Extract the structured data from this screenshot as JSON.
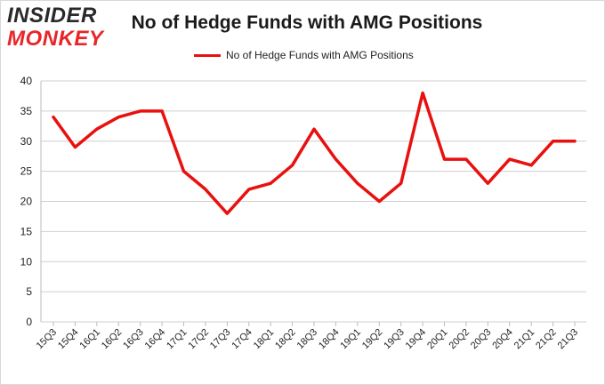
{
  "logo": {
    "line1": "INSIDER",
    "line2": "MONKEY"
  },
  "chart_data": {
    "type": "line",
    "title": "No of Hedge Funds with AMG Positions",
    "xlabel": "",
    "ylabel": "",
    "ylim": [
      0,
      40
    ],
    "yticks": [
      0,
      5,
      10,
      15,
      20,
      25,
      30,
      35,
      40
    ],
    "grid": "horizontal",
    "legend_position": "top",
    "line_color": "#e8110f",
    "categories": [
      "15Q3",
      "15Q4",
      "16Q1",
      "16Q2",
      "16Q3",
      "16Q4",
      "17Q1",
      "17Q2",
      "17Q3",
      "17Q4",
      "18Q1",
      "18Q2",
      "18Q3",
      "18Q4",
      "19Q1",
      "19Q2",
      "19Q3",
      "19Q4",
      "20Q1",
      "20Q2",
      "20Q3",
      "20Q4",
      "21Q1",
      "21Q2",
      "21Q3"
    ],
    "series": [
      {
        "name": "No of Hedge Funds with AMG Positions",
        "values": [
          34,
          29,
          32,
          34,
          35,
          35,
          25,
          22,
          18,
          22,
          23,
          26,
          32,
          27,
          23,
          20,
          23,
          38,
          27,
          27,
          23,
          27,
          26,
          30,
          30
        ]
      }
    ]
  }
}
